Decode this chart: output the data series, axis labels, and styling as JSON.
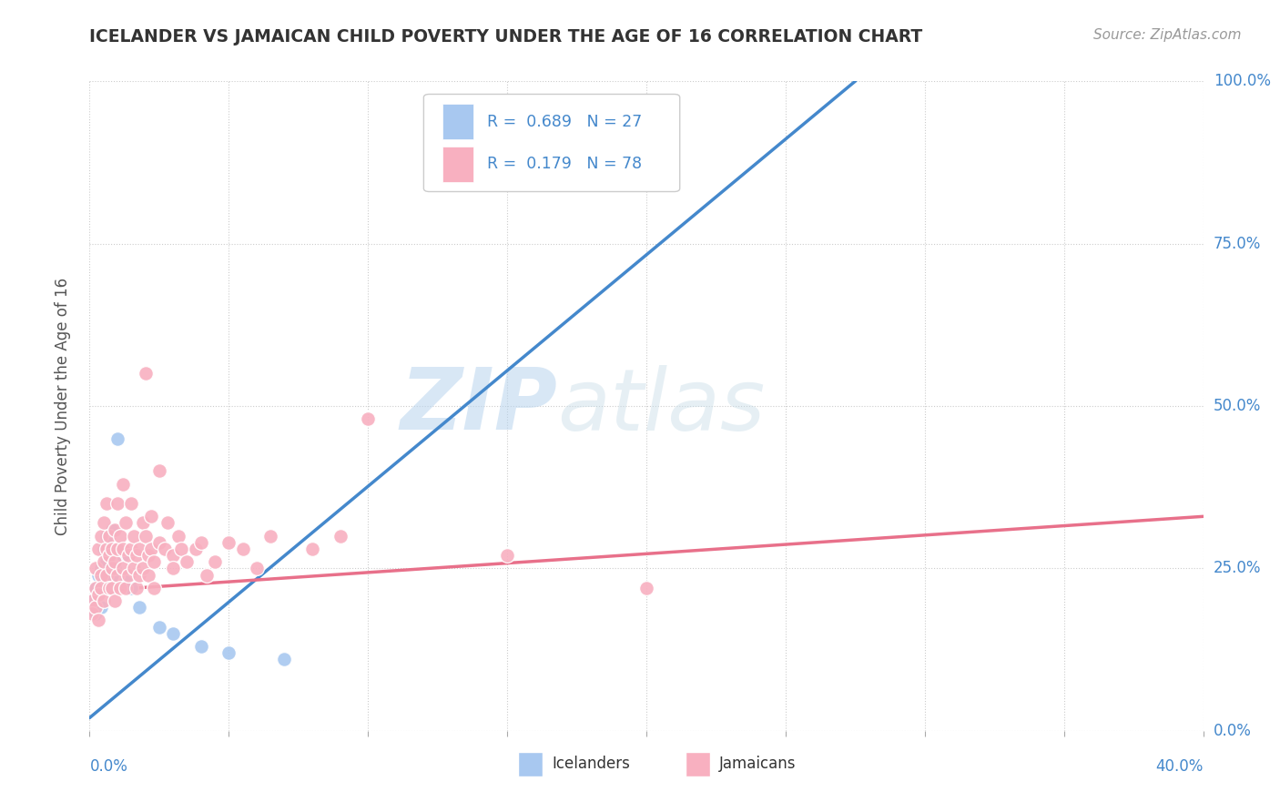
{
  "title": "ICELANDER VS JAMAICAN CHILD POVERTY UNDER THE AGE OF 16 CORRELATION CHART",
  "source": "Source: ZipAtlas.com",
  "ylabel": "Child Poverty Under the Age of 16",
  "ytick_labels": [
    "0.0%",
    "25.0%",
    "50.0%",
    "75.0%",
    "100.0%"
  ],
  "ytick_values": [
    0.0,
    0.25,
    0.5,
    0.75,
    1.0
  ],
  "xlim": [
    0.0,
    0.4
  ],
  "ylim": [
    0.0,
    1.0
  ],
  "icelander_color": "#a8c8f0",
  "jamaican_color": "#f8b0c0",
  "icelander_line_color": "#4488cc",
  "jamaican_line_color": "#e8708a",
  "legend_text_color": "#4488cc",
  "title_color": "#333333",
  "source_color": "#999999",
  "ice_R": 0.689,
  "ice_N": 27,
  "jam_R": 0.179,
  "jam_N": 78,
  "icelander_scatter": [
    [
      0.001,
      0.2
    ],
    [
      0.002,
      0.22
    ],
    [
      0.002,
      0.18
    ],
    [
      0.003,
      0.24
    ],
    [
      0.003,
      0.21
    ],
    [
      0.004,
      0.25
    ],
    [
      0.004,
      0.19
    ],
    [
      0.005,
      0.28
    ],
    [
      0.005,
      0.23
    ],
    [
      0.006,
      0.26
    ],
    [
      0.006,
      0.3
    ],
    [
      0.007,
      0.22
    ],
    [
      0.007,
      0.27
    ],
    [
      0.008,
      0.31
    ],
    [
      0.008,
      0.24
    ],
    [
      0.009,
      0.25
    ],
    [
      0.01,
      0.28
    ],
    [
      0.01,
      0.45
    ],
    [
      0.012,
      0.27
    ],
    [
      0.013,
      0.23
    ],
    [
      0.015,
      0.22
    ],
    [
      0.018,
      0.19
    ],
    [
      0.025,
      0.16
    ],
    [
      0.03,
      0.15
    ],
    [
      0.04,
      0.13
    ],
    [
      0.05,
      0.12
    ],
    [
      0.07,
      0.11
    ]
  ],
  "jamaican_scatter": [
    [
      0.001,
      0.2
    ],
    [
      0.001,
      0.18
    ],
    [
      0.002,
      0.22
    ],
    [
      0.002,
      0.19
    ],
    [
      0.002,
      0.25
    ],
    [
      0.003,
      0.21
    ],
    [
      0.003,
      0.28
    ],
    [
      0.003,
      0.17
    ],
    [
      0.004,
      0.24
    ],
    [
      0.004,
      0.3
    ],
    [
      0.004,
      0.22
    ],
    [
      0.005,
      0.26
    ],
    [
      0.005,
      0.32
    ],
    [
      0.005,
      0.2
    ],
    [
      0.006,
      0.28
    ],
    [
      0.006,
      0.24
    ],
    [
      0.006,
      0.35
    ],
    [
      0.007,
      0.27
    ],
    [
      0.007,
      0.22
    ],
    [
      0.007,
      0.3
    ],
    [
      0.008,
      0.25
    ],
    [
      0.008,
      0.28
    ],
    [
      0.008,
      0.22
    ],
    [
      0.009,
      0.31
    ],
    [
      0.009,
      0.26
    ],
    [
      0.009,
      0.2
    ],
    [
      0.01,
      0.35
    ],
    [
      0.01,
      0.28
    ],
    [
      0.01,
      0.24
    ],
    [
      0.011,
      0.3
    ],
    [
      0.011,
      0.22
    ],
    [
      0.012,
      0.38
    ],
    [
      0.012,
      0.25
    ],
    [
      0.012,
      0.28
    ],
    [
      0.013,
      0.32
    ],
    [
      0.013,
      0.22
    ],
    [
      0.014,
      0.27
    ],
    [
      0.014,
      0.24
    ],
    [
      0.015,
      0.35
    ],
    [
      0.015,
      0.28
    ],
    [
      0.016,
      0.3
    ],
    [
      0.016,
      0.25
    ],
    [
      0.017,
      0.22
    ],
    [
      0.017,
      0.27
    ],
    [
      0.018,
      0.28
    ],
    [
      0.018,
      0.24
    ],
    [
      0.019,
      0.32
    ],
    [
      0.019,
      0.25
    ],
    [
      0.02,
      0.55
    ],
    [
      0.02,
      0.3
    ],
    [
      0.021,
      0.27
    ],
    [
      0.021,
      0.24
    ],
    [
      0.022,
      0.33
    ],
    [
      0.022,
      0.28
    ],
    [
      0.023,
      0.26
    ],
    [
      0.023,
      0.22
    ],
    [
      0.025,
      0.4
    ],
    [
      0.025,
      0.29
    ],
    [
      0.027,
      0.28
    ],
    [
      0.028,
      0.32
    ],
    [
      0.03,
      0.27
    ],
    [
      0.03,
      0.25
    ],
    [
      0.032,
      0.3
    ],
    [
      0.033,
      0.28
    ],
    [
      0.035,
      0.26
    ],
    [
      0.038,
      0.28
    ],
    [
      0.04,
      0.29
    ],
    [
      0.042,
      0.24
    ],
    [
      0.045,
      0.26
    ],
    [
      0.05,
      0.29
    ],
    [
      0.055,
      0.28
    ],
    [
      0.06,
      0.25
    ],
    [
      0.065,
      0.3
    ],
    [
      0.08,
      0.28
    ],
    [
      0.09,
      0.3
    ],
    [
      0.1,
      0.48
    ],
    [
      0.15,
      0.27
    ],
    [
      0.2,
      0.22
    ]
  ]
}
